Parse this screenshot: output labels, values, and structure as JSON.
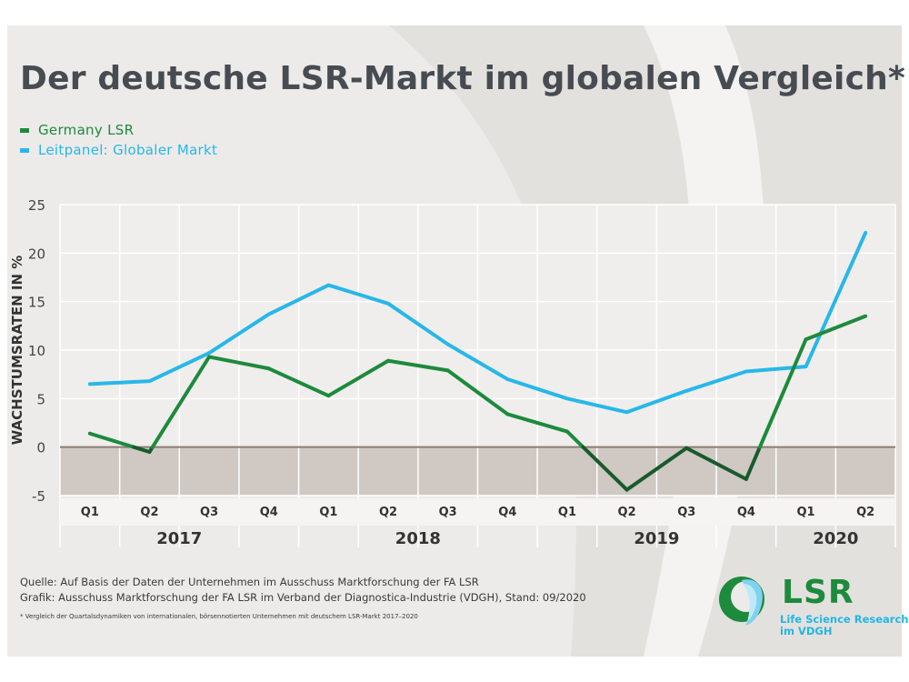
{
  "header": {
    "title": "Der deutsche LSR-Markt im globalen Vergleich*"
  },
  "legend": [
    {
      "label": "Germany LSR",
      "color": "#1d8a3c"
    },
    {
      "label": "Leitpanel: Globaler Markt",
      "color": "#28b7e8"
    }
  ],
  "chart_data": {
    "type": "line",
    "ylabel": "WACHSTUMSRATEN IN %",
    "ylim": [
      -5,
      25
    ],
    "yticks": [
      25,
      20,
      15,
      10,
      5,
      0,
      -5
    ],
    "categories": [
      "Q1",
      "Q2",
      "Q3",
      "Q4",
      "Q1",
      "Q2",
      "Q3",
      "Q4",
      "Q1",
      "Q2",
      "Q3",
      "Q4",
      "Q1",
      "Q2"
    ],
    "year_groups": [
      {
        "label": "2017",
        "quarters": 4
      },
      {
        "label": "2018",
        "quarters": 4
      },
      {
        "label": "2019",
        "quarters": 4
      },
      {
        "label": "2020",
        "quarters": 2
      }
    ],
    "series": [
      {
        "name": "Germany LSR",
        "color": "#1d8a3c",
        "negative_color": "#175a2c",
        "values": [
          1.4,
          -0.5,
          9.3,
          8.1,
          5.3,
          8.9,
          7.9,
          3.4,
          1.6,
          -4.4,
          -0.1,
          -3.3,
          11.1,
          13.5
        ]
      },
      {
        "name": "Leitpanel: Globaler Markt",
        "color": "#28b7e8",
        "values": [
          6.5,
          6.8,
          9.7,
          13.7,
          16.7,
          14.8,
          10.6,
          7.0,
          5.0,
          3.6,
          5.8,
          7.8,
          8.3,
          22.1
        ]
      }
    ],
    "negative_band_color": "#cfc8c3",
    "zero_line_color": "#8a7d74",
    "grid": true
  },
  "footer": {
    "source": "Quelle: Auf Basis der Daten der Unternehmen im Ausschuss Marktforschung der FA LSR",
    "graphic": "Grafik: Ausschuss Marktforschung der FA LSR im Verband der Diagnostica-Industrie (VDGH), Stand: 09/2020",
    "footnote": "* Vergleich der Quartalsdynamiken von internationalen, börsennotierten Unternehmen mit deutschem LSR-Markt 2017–2020"
  },
  "logo": {
    "text": "LSR",
    "subtitle_line1": "Life Science Research",
    "subtitle_line2": "im VDGH"
  }
}
